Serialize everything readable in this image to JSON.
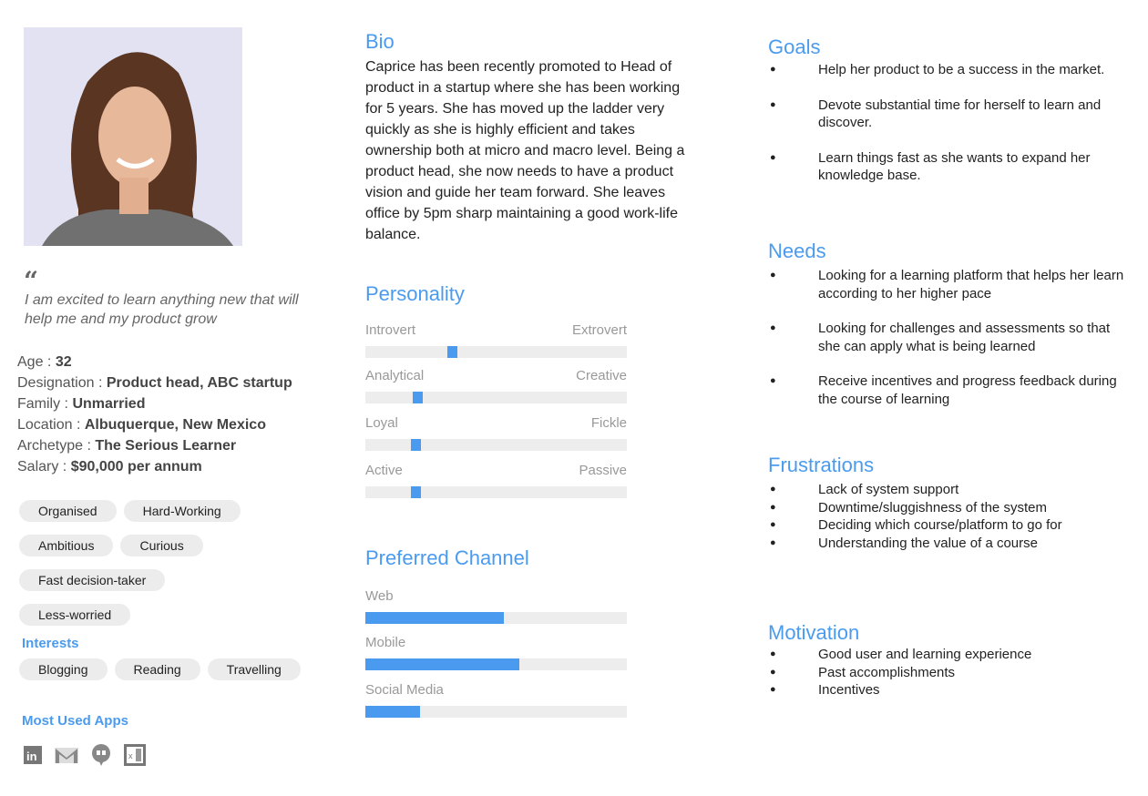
{
  "profile": {
    "quote": "I am excited to learn anything new that will help me and my product grow",
    "facts": [
      {
        "label": "Age : ",
        "value": "32"
      },
      {
        "label": "Designation : ",
        "value": "Product head, ABC startup"
      },
      {
        "label": "Family : ",
        "value": "Unmarried"
      },
      {
        "label": "Location : ",
        "value": "Albuquerque, New Mexico"
      },
      {
        "label": "Archetype : ",
        "value": "The Serious Learner"
      },
      {
        "label": "Salary : ",
        "value": "$90,000 per annum"
      }
    ],
    "traits": [
      "Organised",
      "Hard-Working",
      "Ambitious",
      "Curious",
      "Fast decision-taker",
      "Less-worried"
    ],
    "interests_title": "Interests",
    "interests": [
      "Blogging",
      "Reading",
      "Travelling"
    ],
    "apps_title": "Most Used Apps",
    "apps": [
      "linkedin-icon",
      "gmail-icon",
      "hangouts-icon",
      "excel-icon"
    ]
  },
  "bio": {
    "title": "Bio",
    "text": "Caprice has been recently promoted to Head of product in a startup where she has been working for 5 years. She has moved up the ladder very quickly as she is highly efficient and takes ownership both at micro and macro level. Being a product head, she now needs to have a product vision and guide her team forward. She leaves office by 5pm sharp maintaining a good work-life balance."
  },
  "personality": {
    "title": "Personality",
    "scales": [
      {
        "left": "Introvert",
        "right": "Extrovert",
        "value": 0.33
      },
      {
        "left": "Analytical",
        "right": "Creative",
        "value": 0.2
      },
      {
        "left": "Loyal",
        "right": "Fickle",
        "value": 0.19
      },
      {
        "left": "Active",
        "right": "Passive",
        "value": 0.19
      }
    ]
  },
  "channels": {
    "title": "Preferred Channel",
    "items": [
      {
        "label": "Web",
        "value": 0.53
      },
      {
        "label": "Mobile",
        "value": 0.59
      },
      {
        "label": "Social Media",
        "value": 0.21
      }
    ]
  },
  "goals": {
    "title": "Goals",
    "items": [
      "Help her product to be a success in the market.",
      "Devote substantial time for herself to learn and discover.",
      "Learn things fast as she wants to expand her knowledge base."
    ]
  },
  "needs": {
    "title": "Needs",
    "items": [
      "Looking for a learning platform that helps her learn according to her higher pace",
      "Looking for challenges and assessments so that she can apply what is being learned",
      "Receive incentives and progress feedback during the course of learning"
    ]
  },
  "frustrations": {
    "title": "Frustrations",
    "items": [
      "Lack of system support",
      "Downtime/sluggishness of the system",
      "Deciding which course/platform to go for",
      "Understanding the value of a course"
    ]
  },
  "motivation": {
    "title": "Motivation",
    "items": [
      "Good user and learning experience",
      "Past accomplishments",
      "Incentives"
    ]
  },
  "colors": {
    "accent": "#4a9bef",
    "track": "#ededed",
    "chip": "#ececec"
  }
}
